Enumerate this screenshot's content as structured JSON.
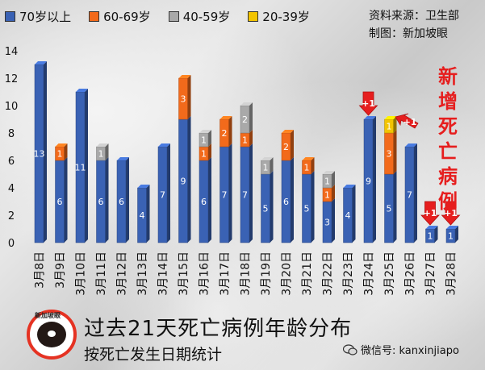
{
  "legend": {
    "items": [
      {
        "label": "70岁以上",
        "color": "#3a62b4"
      },
      {
        "label": "60-69岁",
        "color": "#f26a1b"
      },
      {
        "label": "40-59岁",
        "color": "#a9a9a9"
      },
      {
        "label": "20-39岁",
        "color": "#f2c400"
      }
    ]
  },
  "credit": {
    "source": "资料来源：卫生部",
    "made_by": "制图：新加坡眼"
  },
  "annotation": {
    "chars": [
      "新",
      "增",
      "死",
      "亡",
      "病",
      "例"
    ],
    "arrow_label": "+1"
  },
  "title": "过去21天死亡病例年龄分布",
  "subtitle": "按死亡发生日期统计",
  "logo_text": "新加坡眼",
  "wechat": "微信号: kanxinjiapo",
  "chart_data": {
    "type": "bar",
    "stacked": true,
    "categories": [
      "3月8日",
      "3月9日",
      "3月10日",
      "3月11日",
      "3月12日",
      "3月13日",
      "3月14日",
      "3月15日",
      "3月16日",
      "3月17日",
      "3月18日",
      "3月19日",
      "3月20日",
      "3月21日",
      "3月22日",
      "3月23日",
      "3月24日",
      "3月25日",
      "3月26日",
      "3月27日",
      "3月28日"
    ],
    "series": [
      {
        "name": "70岁以上",
        "color": "#3a62b4",
        "values": [
          13,
          6,
          11,
          6,
          6,
          4,
          7,
          9,
          6,
          7,
          7,
          5,
          6,
          5,
          3,
          4,
          9,
          5,
          7,
          1,
          1
        ]
      },
      {
        "name": "60-69岁",
        "color": "#f26a1b",
        "values": [
          0,
          1,
          0,
          0,
          0,
          0,
          0,
          3,
          1,
          2,
          1,
          0,
          2,
          1,
          1,
          0,
          0,
          3,
          0,
          0,
          0
        ]
      },
      {
        "name": "40-59岁",
        "color": "#a9a9a9",
        "values": [
          0,
          0,
          0,
          1,
          0,
          0,
          0,
          0,
          1,
          0,
          2,
          1,
          0,
          0,
          1,
          0,
          0,
          0,
          0,
          0,
          0
        ]
      },
      {
        "name": "20-39岁",
        "color": "#f2c400",
        "values": [
          0,
          0,
          0,
          0,
          0,
          0,
          0,
          0,
          0,
          0,
          0,
          0,
          0,
          0,
          0,
          0,
          0,
          1,
          0,
          0,
          0
        ]
      }
    ],
    "ylim": [
      0,
      14
    ],
    "yticks": [
      0,
      2,
      4,
      6,
      8,
      10,
      12,
      14
    ],
    "new_death_markers": [
      {
        "category": "3月24日",
        "series": "70岁以上",
        "label": "+1"
      },
      {
        "category": "3月25日",
        "series": "20-39岁",
        "label": "+1"
      },
      {
        "category": "3月27日",
        "series": "70岁以上",
        "label": "+1"
      },
      {
        "category": "3月28日",
        "series": "70岁以上",
        "label": "+1"
      }
    ]
  }
}
